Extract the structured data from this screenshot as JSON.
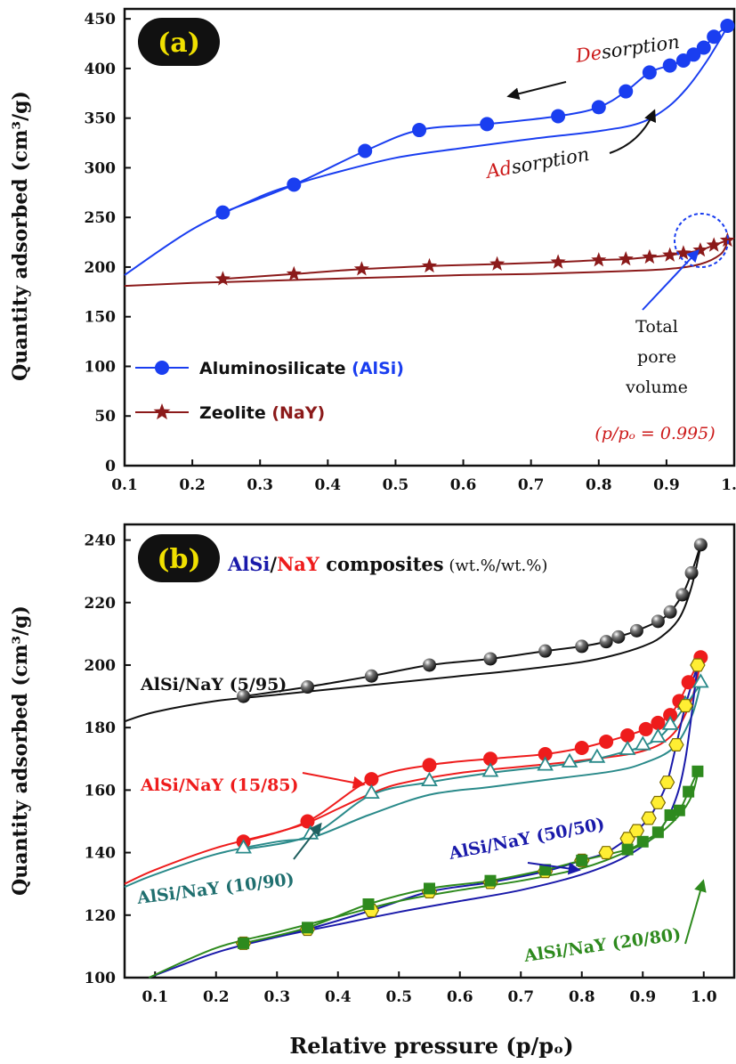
{
  "chart_data": [
    {
      "type": "line",
      "panel_label": "(a)",
      "ylabel": "Quantity  adsorbed (cm³/g)",
      "xlim": [
        0.1,
        1.0
      ],
      "ylim": [
        0,
        460
      ],
      "x_ticks": [
        "0.1",
        "0.2",
        "0.3",
        "0.4",
        "0.5",
        "0.6",
        "0.7",
        "0.8",
        "0.9",
        "1.0"
      ],
      "y_ticks": [
        "0",
        "50",
        "100",
        "150",
        "200",
        "250",
        "300",
        "350",
        "400",
        "450"
      ],
      "series": [
        {
          "name": "Aluminosilicate (AlSi)",
          "legend_text": "Aluminosilicate",
          "legend_paren": "(AlSi)",
          "color": "#1a3ef0",
          "marker": "circle",
          "desorption": {
            "x": [
              0.245,
              0.35,
              0.455,
              0.535,
              0.635,
              0.74,
              0.8,
              0.84,
              0.875,
              0.905,
              0.925,
              0.94,
              0.955,
              0.97,
              0.99
            ],
            "y": [
              255,
              283,
              317,
              338,
              344,
              352,
              361,
              377,
              396,
              403,
              408,
              414,
              421,
              432,
              443
            ]
          },
          "adsorption": {
            "x": [
              0.1,
              0.2,
              0.3,
              0.35,
              0.4,
              0.5,
              0.6,
              0.7,
              0.8,
              0.86,
              0.9,
              0.93,
              0.96,
              0.99
            ],
            "y": [
              192,
              238,
              271,
              283,
              293,
              310,
              320,
              329,
              337,
              345,
              360,
              380,
              408,
              442
            ]
          }
        },
        {
          "name": "Zeolite (NaY)",
          "legend_text": "Zeolite",
          "legend_paren": "(NaY)",
          "color": "#8b1a1a",
          "marker": "star",
          "desorption": {
            "x": [
              0.245,
              0.35,
              0.45,
              0.55,
              0.65,
              0.74,
              0.8,
              0.84,
              0.875,
              0.905,
              0.925,
              0.95,
              0.97,
              0.99
            ],
            "y": [
              188,
              193,
              198,
              201,
              203,
              205,
              207,
              208,
              210,
              212,
              214,
              217,
              222,
              227
            ]
          },
          "adsorption": {
            "x": [
              0.1,
              0.2,
              0.3,
              0.4,
              0.5,
              0.6,
              0.7,
              0.8,
              0.9,
              0.95,
              0.98,
              0.99
            ],
            "y": [
              181,
              184,
              186,
              188,
              190,
              192,
              193,
              195,
              198,
              203,
              213,
              225
            ]
          }
        }
      ],
      "annotations": {
        "desorption_prefix": "De",
        "desorption_suffix": "sorption",
        "adsorption_prefix": "Ad",
        "adsorption_suffix": "sorption",
        "total_line1": "Total",
        "total_line2": "pore",
        "total_line3": "volume",
        "pressure_note": "(p/pₒ = 0.995)"
      }
    },
    {
      "type": "line",
      "panel_label": "(b)",
      "ylabel": "Quantity adsorbed (cm³/g)",
      "xlabel": "Relative pressure (p/pₒ)",
      "xlim": [
        0.05,
        1.05
      ],
      "ylim": [
        100,
        245
      ],
      "x_ticks": [
        "0.1",
        "0.2",
        "0.3",
        "0.4",
        "0.5",
        "0.6",
        "0.7",
        "0.8",
        "0.9",
        "1.0"
      ],
      "y_ticks": [
        "100",
        "120",
        "140",
        "160",
        "180",
        "200",
        "220",
        "240"
      ],
      "title_parts": [
        "AlSi",
        "/",
        "NaY",
        " composites",
        " (wt.%/wt.%)"
      ],
      "series": [
        {
          "name": "AlSi/NaY (5/95)",
          "color": "#111111",
          "marker": "sphere",
          "desorption": {
            "x": [
              0.245,
              0.35,
              0.455,
              0.55,
              0.65,
              0.74,
              0.8,
              0.84,
              0.86,
              0.89,
              0.925,
              0.945,
              0.965,
              0.98,
              0.995
            ],
            "y": [
              190,
              193,
              196.5,
              200,
              202,
              204.5,
              206,
              207.5,
              209,
              211,
              214,
              217,
              222.5,
              229.5,
              238.5
            ]
          },
          "adsorption": {
            "x": [
              0.05,
              0.1,
              0.2,
              0.3,
              0.4,
              0.5,
              0.6,
              0.7,
              0.8,
              0.85,
              0.9,
              0.93,
              0.96,
              0.98,
              0.995
            ],
            "y": [
              182,
              185,
              188.5,
              190.5,
              192.5,
              194.5,
              196.5,
              198.5,
              201,
              203,
              206,
              209,
              215,
              225,
              238
            ]
          }
        },
        {
          "name": "AlSi/NaY (15/85)",
          "color": "#ee1c1c",
          "marker": "circle",
          "desorption": {
            "x": [
              0.245,
              0.35,
              0.455,
              0.55,
              0.65,
              0.74,
              0.8,
              0.84,
              0.875,
              0.905,
              0.925,
              0.945,
              0.96,
              0.975,
              0.995
            ],
            "y": [
              143.5,
              150,
              163.5,
              168,
              170,
              171.5,
              173.5,
              175.5,
              177.5,
              179.5,
              181.5,
              184,
              188.5,
              194.5,
              202.5
            ]
          },
          "adsorption": {
            "x": [
              0.05,
              0.1,
              0.2,
              0.3,
              0.35,
              0.4,
              0.45,
              0.5,
              0.6,
              0.7,
              0.8,
              0.9,
              0.95,
              0.98,
              0.995
            ],
            "y": [
              130,
              134.5,
              141.5,
              146.5,
              149.5,
              154,
              158.5,
              162,
              165.5,
              167.5,
              169.5,
              172.5,
              178,
              189,
              201
            ]
          }
        },
        {
          "name": "AlSi/NaY (10/90)",
          "color": "#2a8a8a",
          "marker": "triangle-open",
          "desorption": {
            "x": [
              0.245,
              0.355,
              0.455,
              0.55,
              0.65,
              0.74,
              0.78,
              0.825,
              0.875,
              0.9,
              0.925,
              0.945,
              0.97,
              0.995
            ],
            "y": [
              141,
              145.5,
              158.5,
              162.5,
              165.5,
              167.5,
              168.5,
              170,
              172.5,
              174,
              176.5,
              180.5,
              187,
              194
            ]
          },
          "adsorption": {
            "x": [
              0.05,
              0.1,
              0.2,
              0.3,
              0.36,
              0.45,
              0.55,
              0.65,
              0.75,
              0.85,
              0.9,
              0.95,
              0.98,
              0.995
            ],
            "y": [
              129,
              133,
              139.5,
              143.5,
              145,
              152,
              158.5,
              161,
              163.5,
              166,
              168.5,
              173.5,
              183.5,
              194
            ]
          }
        },
        {
          "name": "AlSi/NaY (50/50)",
          "color": "#1a1aaa",
          "marker": "hexagon",
          "desorption": {
            "x": [
              0.245,
              0.35,
              0.455,
              0.55,
              0.65,
              0.74,
              0.8,
              0.84,
              0.875,
              0.89,
              0.91,
              0.925,
              0.94,
              0.955,
              0.97,
              0.99
            ],
            "y": [
              111,
              115.5,
              121.5,
              127.5,
              130.5,
              134,
              137.5,
              140,
              144.5,
              147,
              151,
              156,
              162.5,
              174.5,
              187,
              200
            ]
          },
          "adsorption": {
            "x": [
              0.09,
              0.2,
              0.3,
              0.4,
              0.5,
              0.6,
              0.7,
              0.8,
              0.87,
              0.92,
              0.95,
              0.97,
              0.99
            ],
            "y": [
              100,
              108,
              113,
              117,
              121,
              124.5,
              128,
              133,
              138.5,
              145.5,
              155,
              170,
              200
            ]
          }
        },
        {
          "name": "AlSi/NaY (20/80)",
          "color": "#2e8a1e",
          "marker": "square",
          "desorption": {
            "x": [
              0.245,
              0.35,
              0.45,
              0.55,
              0.65,
              0.74,
              0.8,
              0.875,
              0.9,
              0.925,
              0.945,
              0.96,
              0.975,
              0.99
            ],
            "y": [
              111,
              116,
              123.5,
              128.5,
              131,
              134.5,
              137.5,
              141,
              143.5,
              146.5,
              152,
              153.5,
              159.5,
              166
            ]
          },
          "adsorption": {
            "x": [
              0.09,
              0.2,
              0.3,
              0.4,
              0.5,
              0.6,
              0.7,
              0.8,
              0.87,
              0.92,
              0.96,
              0.98,
              0.99
            ],
            "y": [
              100,
              109.5,
              114.5,
              119.5,
              124.5,
              128,
              131,
              135,
              140,
              145,
              152,
              158,
              165
            ]
          }
        }
      ]
    }
  ]
}
